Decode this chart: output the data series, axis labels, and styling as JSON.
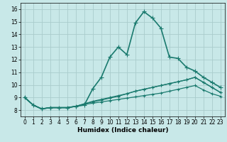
{
  "xlabel": "Humidex (Indice chaleur)",
  "background_color": "#c8e8e8",
  "grid_color": "#aacccc",
  "line_color": "#1a7a6e",
  "xlim": [
    -0.5,
    23.5
  ],
  "ylim": [
    7.5,
    16.5
  ],
  "xticks": [
    0,
    1,
    2,
    3,
    4,
    5,
    6,
    7,
    8,
    9,
    10,
    11,
    12,
    13,
    14,
    15,
    16,
    17,
    18,
    19,
    20,
    21,
    22,
    23
  ],
  "yticks": [
    8,
    9,
    10,
    11,
    12,
    13,
    14,
    15,
    16
  ],
  "series": [
    {
      "x": [
        0,
        1,
        2,
        3,
        4,
        5,
        6,
        7,
        8,
        9,
        10,
        11,
        12,
        13,
        14,
        15,
        16,
        17,
        18,
        19,
        20,
        21,
        22,
        23
      ],
      "y": [
        9.0,
        8.4,
        8.1,
        8.2,
        8.2,
        8.2,
        8.3,
        8.4,
        9.7,
        10.6,
        12.2,
        13.0,
        12.4,
        14.9,
        15.8,
        15.3,
        14.5,
        12.2,
        12.1,
        11.4,
        11.1,
        10.6,
        10.2,
        9.8
      ],
      "lw": 1.2,
      "ms": 4
    },
    {
      "x": [
        0,
        1,
        2,
        3,
        4,
        5,
        6,
        7,
        8,
        9,
        10,
        11,
        12,
        13,
        14,
        15,
        16,
        17,
        18,
        19,
        20,
        21,
        22,
        23
      ],
      "y": [
        9.0,
        8.4,
        8.1,
        8.2,
        8.2,
        8.2,
        8.3,
        8.5,
        8.7,
        8.85,
        9.0,
        9.15,
        9.3,
        9.5,
        9.65,
        9.8,
        9.95,
        10.1,
        10.25,
        10.4,
        10.6,
        10.2,
        9.8,
        9.4
      ],
      "lw": 0.9,
      "ms": 3
    },
    {
      "x": [
        0,
        1,
        2,
        3,
        4,
        5,
        6,
        7,
        8,
        9,
        10,
        11,
        12,
        13,
        14,
        15,
        16,
        17,
        18,
        19,
        20,
        21,
        22,
        23
      ],
      "y": [
        9.0,
        8.4,
        8.1,
        8.2,
        8.2,
        8.2,
        8.3,
        8.5,
        8.65,
        8.8,
        8.95,
        9.1,
        9.3,
        9.5,
        9.65,
        9.8,
        9.95,
        10.1,
        10.25,
        10.4,
        10.6,
        10.2,
        9.8,
        9.4
      ],
      "lw": 0.9,
      "ms": 3
    },
    {
      "x": [
        0,
        1,
        2,
        3,
        4,
        5,
        6,
        7,
        8,
        9,
        10,
        11,
        12,
        13,
        14,
        15,
        16,
        17,
        18,
        19,
        20,
        21,
        22,
        23
      ],
      "y": [
        9.0,
        8.4,
        8.1,
        8.2,
        8.2,
        8.2,
        8.3,
        8.45,
        8.55,
        8.65,
        8.75,
        8.85,
        8.95,
        9.05,
        9.15,
        9.25,
        9.35,
        9.5,
        9.65,
        9.8,
        9.95,
        9.6,
        9.3,
        9.1
      ],
      "lw": 0.9,
      "ms": 3
    }
  ]
}
